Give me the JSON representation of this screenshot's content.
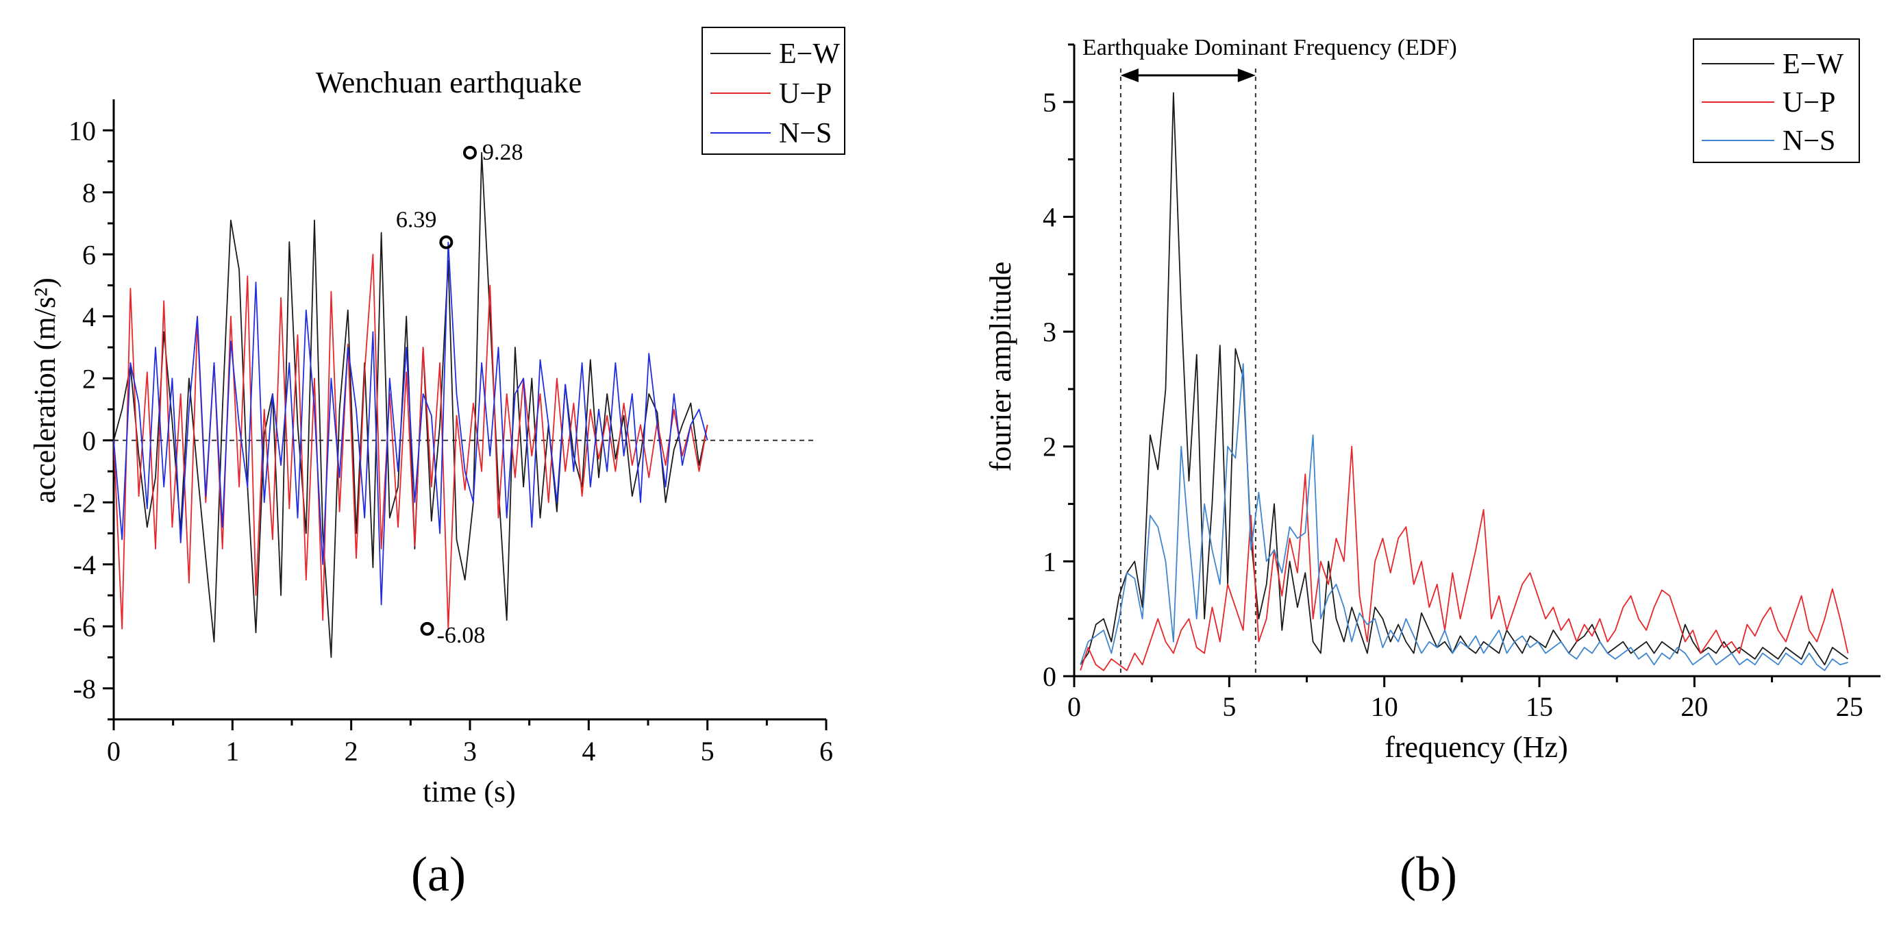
{
  "chart_data": [
    {
      "panel_label": "(a)",
      "type": "line",
      "title": "Wenchuan earthquake",
      "xlabel": "time (s)",
      "ylabel": "acceleration (m/s²)",
      "xlim": [
        0,
        6
      ],
      "ylim": [
        -9,
        11
      ],
      "xticks": [
        "0",
        "1",
        "2",
        "3",
        "4",
        "5",
        "6"
      ],
      "yticks": [
        "-8",
        "-6",
        "-4",
        "-2",
        "0",
        "2",
        "4",
        "6",
        "8",
        "10"
      ],
      "zero_line": true,
      "legend": {
        "position": "top-right",
        "entries": [
          "E−W",
          "U−P",
          "N−S"
        ]
      },
      "series": [
        {
          "name": "E−W",
          "color": "#1a1a1a",
          "values": [
            0,
            1.0,
            2.4,
            -0.5,
            -2.8,
            -1.2,
            3.5,
            0.6,
            -2.9,
            2.0,
            -1.0,
            -3.8,
            -6.5,
            1.0,
            7.1,
            5.5,
            -1.5,
            -6.2,
            0.2,
            1.5,
            -5.0,
            6.4,
            0.5,
            -3.0,
            7.1,
            -3.0,
            -7.0,
            1.0,
            4.2,
            -3.0,
            2.5,
            -4.1,
            6.7,
            -2.5,
            -1.5,
            4.0,
            -3.5,
            3.0,
            -2.6,
            0.5,
            5.8,
            -3.2,
            -4.5,
            -2.0,
            9.28,
            4.0,
            -1.5,
            -5.8,
            3.0,
            -1.5,
            2.0,
            -2.5,
            0.5,
            -2.3,
            1.8,
            -0.5,
            -1.5,
            2.6,
            -1.2,
            1.5,
            -0.6,
            0.8,
            -1.8,
            -0.5,
            1.5,
            0.9,
            -2.0,
            -0.3,
            0.5,
            1.2,
            -0.8,
            0.5
          ]
        },
        {
          "name": "U−P",
          "color": "#e8262a",
          "values": [
            0,
            -6.08,
            4.9,
            -1.8,
            2.2,
            -3.5,
            4.5,
            -2.8,
            1.5,
            -4.6,
            3.8,
            -2.0,
            2.5,
            -3.5,
            4.0,
            -1.5,
            5.3,
            -5.0,
            1.0,
            -3.2,
            4.6,
            -2.2,
            3.4,
            -4.5,
            2.0,
            -5.8,
            4.8,
            -2.3,
            3.1,
            -3.8,
            2.2,
            6.0,
            -3.5,
            1.5,
            -2.8,
            2.2,
            -3.4,
            3.0,
            -1.5,
            2.5,
            -6.08,
            0.8,
            -1.6,
            1.2,
            -1.0,
            5.0,
            -2.5,
            1.5,
            -1.2,
            2.0,
            -0.5,
            1.5,
            -2.0,
            2.0,
            -1.0,
            1.2,
            -1.8,
            1.0,
            -0.6,
            0.8,
            -1.0,
            1.2,
            -0.8,
            0.5,
            -1.2,
            0.6,
            -0.8,
            1.0,
            -0.5,
            0.5,
            -1.0,
            0.5
          ]
        },
        {
          "name": "N−S",
          "color": "#1f2ee0",
          "values": [
            0,
            -3.2,
            2.5,
            1.2,
            -2.2,
            3.0,
            -1.5,
            2.0,
            -3.3,
            1.0,
            4.0,
            -1.8,
            2.5,
            -2.8,
            3.2,
            0.5,
            -1.5,
            5.1,
            -2.0,
            1.5,
            -0.8,
            2.5,
            -2.5,
            4.2,
            1.0,
            -4.0,
            2.0,
            -1.2,
            3.0,
            1.0,
            -2.5,
            3.5,
            -5.3,
            2.0,
            -1.0,
            3.0,
            -2.0,
            1.5,
            0.8,
            -3.0,
            6.39,
            1.5,
            -1.0,
            -2.0,
            2.5,
            -0.5,
            3.0,
            -2.5,
            1.5,
            2.0,
            -2.8,
            2.6,
            0.5,
            -2.0,
            1.8,
            -1.0,
            2.5,
            -1.5,
            1.0,
            -1.0,
            2.5,
            -0.5,
            1.5,
            -2.0,
            2.8,
            0.5,
            -1.5,
            1.5,
            -0.8,
            0.5,
            1.0,
            0.0
          ]
        }
      ],
      "annotations": [
        {
          "label": "9.28",
          "x": 3.0,
          "y": 9.28
        },
        {
          "label": "6.39",
          "x": 2.8,
          "y": 6.39
        },
        {
          "label": "-6.08",
          "x": 2.64,
          "y": -6.08
        }
      ]
    },
    {
      "panel_label": "(b)",
      "type": "line",
      "title": "",
      "xlabel": "frequency (Hz)",
      "ylabel": "fourier amplitude",
      "xlim": [
        0,
        26
      ],
      "ylim": [
        0,
        5.5
      ],
      "xticks": [
        "0",
        "5",
        "10",
        "15",
        "20",
        "25"
      ],
      "yticks": [
        "0",
        "1",
        "2",
        "3",
        "4",
        "5"
      ],
      "legend": {
        "position": "top-right",
        "entries": [
          "E−W",
          "U−P",
          "N−S"
        ]
      },
      "band": {
        "label": "Earthquake Dominant Frequency (EDF)",
        "x_start": 1.5,
        "x_end": 5.85
      },
      "x_start": 0.2,
      "x_step": 0.25,
      "series": [
        {
          "name": "E−W",
          "color": "#1a1a1a",
          "values": [
            0.1,
            0.2,
            0.45,
            0.5,
            0.3,
            0.7,
            0.9,
            1.0,
            0.6,
            2.1,
            1.8,
            2.5,
            5.08,
            3.2,
            1.7,
            2.8,
            0.5,
            1.5,
            2.88,
            0.8,
            2.85,
            2.6,
            1.2,
            0.5,
            0.8,
            1.5,
            0.4,
            1.0,
            0.6,
            0.9,
            0.3,
            0.2,
            1.0,
            0.5,
            0.3,
            0.6,
            0.4,
            0.2,
            0.6,
            0.5,
            0.3,
            0.45,
            0.3,
            0.2,
            0.55,
            0.4,
            0.25,
            0.3,
            0.2,
            0.35,
            0.25,
            0.2,
            0.3,
            0.25,
            0.2,
            0.4,
            0.3,
            0.2,
            0.35,
            0.3,
            0.25,
            0.4,
            0.3,
            0.2,
            0.3,
            0.35,
            0.45,
            0.3,
            0.2,
            0.25,
            0.3,
            0.2,
            0.25,
            0.3,
            0.2,
            0.3,
            0.25,
            0.2,
            0.45,
            0.3,
            0.2,
            0.25,
            0.2,
            0.3,
            0.2,
            0.25,
            0.2,
            0.15,
            0.25,
            0.2,
            0.15,
            0.25,
            0.2,
            0.15,
            0.3,
            0.2,
            0.1,
            0.25,
            0.2,
            0.15
          ]
        },
        {
          "name": "U−P",
          "color": "#e8262a",
          "values": [
            0.05,
            0.25,
            0.1,
            0.05,
            0.15,
            0.1,
            0.05,
            0.2,
            0.1,
            0.3,
            0.5,
            0.3,
            0.2,
            0.4,
            0.5,
            0.25,
            0.2,
            0.6,
            0.3,
            0.8,
            0.6,
            0.4,
            1.4,
            0.3,
            0.5,
            1.1,
            0.7,
            1.2,
            0.9,
            1.76,
            0.5,
            1.0,
            0.8,
            1.2,
            1.0,
            2.0,
            0.7,
            0.3,
            1.0,
            1.2,
            0.9,
            1.2,
            1.3,
            0.8,
            1.0,
            0.6,
            0.8,
            0.4,
            0.9,
            0.5,
            0.8,
            1.1,
            1.45,
            0.5,
            0.7,
            0.4,
            0.6,
            0.8,
            0.9,
            0.7,
            0.5,
            0.6,
            0.4,
            0.5,
            0.3,
            0.45,
            0.35,
            0.5,
            0.3,
            0.4,
            0.6,
            0.7,
            0.5,
            0.4,
            0.6,
            0.75,
            0.7,
            0.5,
            0.3,
            0.4,
            0.2,
            0.3,
            0.4,
            0.25,
            0.3,
            0.2,
            0.45,
            0.35,
            0.5,
            0.6,
            0.4,
            0.3,
            0.5,
            0.7,
            0.4,
            0.3,
            0.5,
            0.76,
            0.5,
            0.2
          ]
        },
        {
          "name": "N−S",
          "color": "#3f86d1",
          "values": [
            0.1,
            0.3,
            0.35,
            0.4,
            0.2,
            0.5,
            0.9,
            0.85,
            0.5,
            1.4,
            1.3,
            1.0,
            0.3,
            2.0,
            1.2,
            0.5,
            1.5,
            1.1,
            0.8,
            2.0,
            1.9,
            2.72,
            1.1,
            1.6,
            1.0,
            1.1,
            0.9,
            1.3,
            1.2,
            1.25,
            2.1,
            0.5,
            0.7,
            0.8,
            0.6,
            0.3,
            0.55,
            0.45,
            0.5,
            0.25,
            0.4,
            0.3,
            0.5,
            0.35,
            0.2,
            0.3,
            0.25,
            0.4,
            0.2,
            0.3,
            0.25,
            0.35,
            0.2,
            0.3,
            0.4,
            0.2,
            0.3,
            0.35,
            0.25,
            0.3,
            0.2,
            0.25,
            0.3,
            0.2,
            0.15,
            0.25,
            0.2,
            0.3,
            0.2,
            0.15,
            0.2,
            0.25,
            0.15,
            0.2,
            0.1,
            0.2,
            0.15,
            0.25,
            0.2,
            0.1,
            0.15,
            0.2,
            0.1,
            0.15,
            0.2,
            0.1,
            0.15,
            0.1,
            0.2,
            0.15,
            0.1,
            0.2,
            0.15,
            0.1,
            0.2,
            0.1,
            0.05,
            0.15,
            0.1,
            0.12
          ]
        }
      ]
    }
  ]
}
